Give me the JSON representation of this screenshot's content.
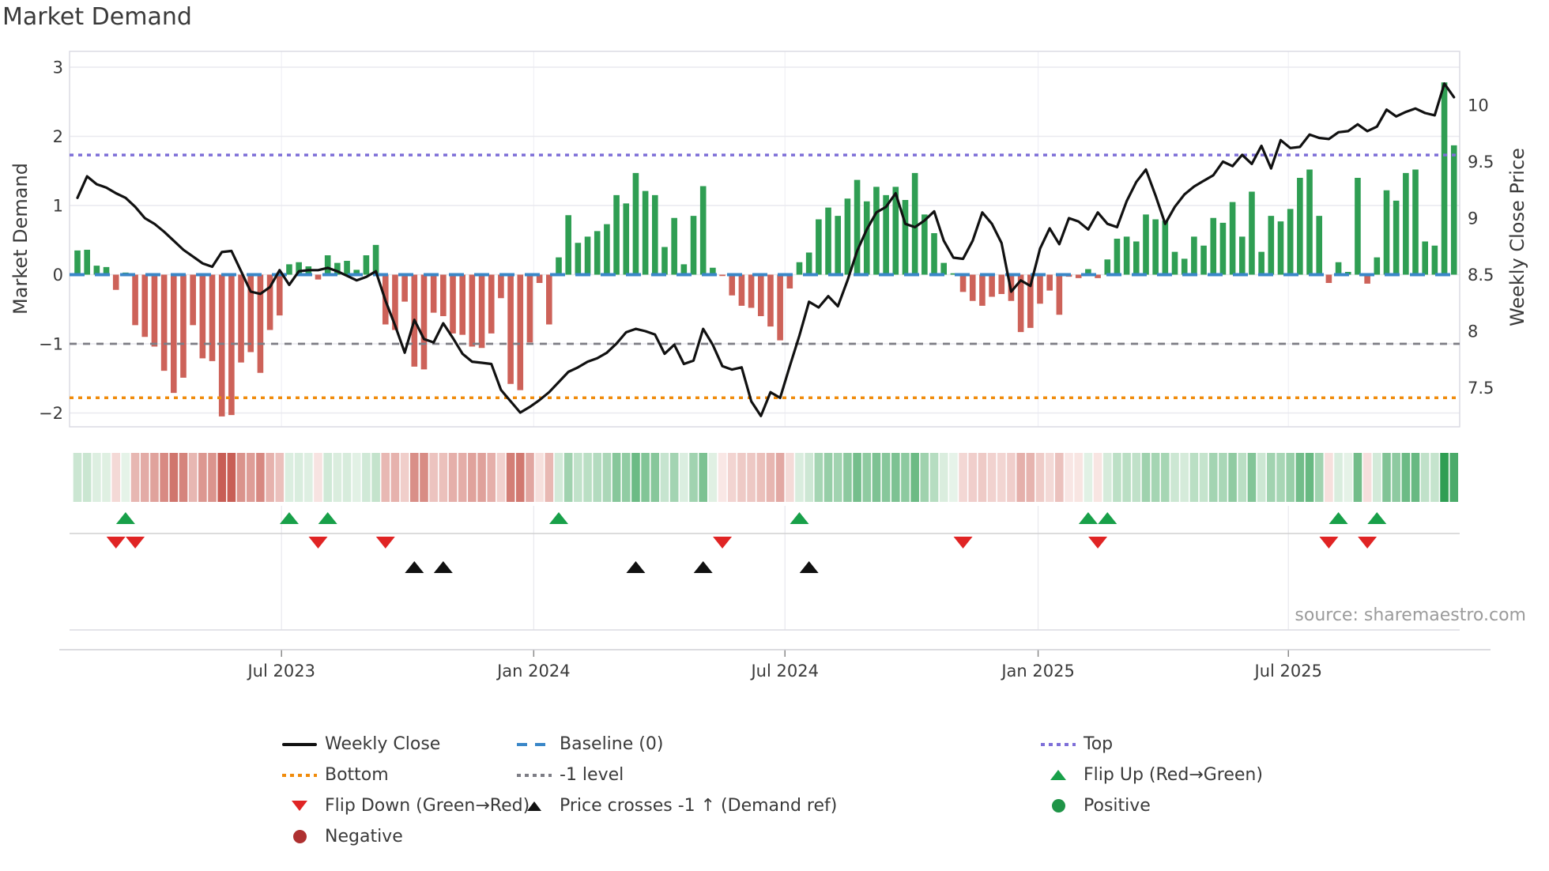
{
  "title": "Market Demand",
  "source_text": "source: sharemaestro.com",
  "axes": {
    "left_label": "Market Demand",
    "right_label": "Weekly Close Price",
    "left_ticks": [
      3,
      2,
      1,
      0,
      -1,
      -2
    ],
    "right_ticks": [
      10,
      9.5,
      9,
      8.5,
      8,
      7.5
    ],
    "x_ticks": [
      {
        "label": "Jul 2023",
        "week": 21.2
      },
      {
        "label": "Jan 2024",
        "week": 47.4
      },
      {
        "label": "Jul 2024",
        "week": 73.5
      },
      {
        "label": "Jan 2025",
        "week": 99.8
      },
      {
        "label": "Jul 2025",
        "week": 125.8
      }
    ]
  },
  "colors": {
    "bar_positive": "#2f9e53",
    "bar_negative": "#cd6259",
    "price_line": "#111111",
    "baseline": "#3a87c8",
    "top_line": "#7e6fd8",
    "bottom_line": "#f08b0b",
    "minus1_line": "#7d7d85",
    "flip_up": "#18a049",
    "flip_down": "#e02424",
    "price_cross": "#111111",
    "grid": "#e9e9ef",
    "spine": "#d9d9e2",
    "heat_green_lo": "#e8f4ea",
    "heat_green_hi": "#2f9e53",
    "heat_red_lo": "#f9e8e6",
    "heat_red_hi": "#c4544a"
  },
  "ref_lines": {
    "baseline": {
      "label": "Baseline (0)",
      "value": 0
    },
    "top": {
      "label": "Top",
      "value": 1.73
    },
    "bottom": {
      "label": "Bottom",
      "value": -1.78
    },
    "minus1": {
      "label": "-1 level",
      "value": -1
    }
  },
  "legend": {
    "columns": [
      {
        "items": [
          {
            "swatch": "line-black",
            "label": "Weekly Close"
          },
          {
            "swatch": "dotted-orange",
            "label": "Bottom"
          },
          {
            "swatch": "triangle-down-red",
            "label": "Flip Down (Green→Red)"
          },
          {
            "swatch": "circle-darkred",
            "label": "Negative"
          }
        ]
      },
      {
        "items": [
          {
            "swatch": "dashed-blue",
            "label": "Baseline (0)"
          },
          {
            "swatch": "dotted-gray",
            "label": "-1 level"
          },
          {
            "swatch": "triangle-up-black",
            "label": "Price crosses -1 ↑ (Demand ref)"
          }
        ]
      },
      {
        "items": [
          {
            "swatch": "dotted-purple",
            "label": "Top"
          },
          {
            "swatch": "triangle-up-green",
            "label": "Flip Up (Red→Green)"
          },
          {
            "swatch": "circle-green",
            "label": "Positive"
          }
        ]
      }
    ]
  },
  "chart_data": {
    "type": "bar+line",
    "x_unit": "week",
    "n_weeks": 144,
    "demand_axis_range": [
      -2.2,
      3.25
    ],
    "price_axis_range": [
      7.15,
      10.47
    ],
    "grid": true,
    "legend_position": "bottom",
    "series": [
      {
        "name": "Market Demand",
        "type": "bar",
        "axis": "left",
        "values": [
          0.35,
          0.36,
          0.13,
          0.11,
          -0.22,
          0.03,
          -0.73,
          -0.9,
          -1.04,
          -1.39,
          -1.71,
          -1.49,
          -0.73,
          -1.21,
          -1.25,
          -2.05,
          -2.03,
          -1.27,
          -1.12,
          -1.42,
          -0.8,
          -0.59,
          0.15,
          0.18,
          0.12,
          -0.07,
          0.28,
          0.17,
          0.2,
          0.07,
          0.28,
          0.43,
          -0.72,
          -0.8,
          -0.39,
          -1.33,
          -1.37,
          -0.55,
          -0.6,
          -0.85,
          -0.87,
          -1.04,
          -1.06,
          -0.85,
          -0.34,
          -1.58,
          -1.67,
          -0.98,
          -0.12,
          -0.72,
          0.25,
          0.86,
          0.46,
          0.55,
          0.63,
          0.73,
          1.15,
          1.03,
          1.47,
          1.21,
          1.15,
          0.4,
          0.82,
          0.15,
          0.85,
          1.28,
          0.1,
          -0.02,
          -0.3,
          -0.45,
          -0.48,
          -0.6,
          -0.75,
          -0.95,
          -0.2,
          0.18,
          0.32,
          0.8,
          0.97,
          0.85,
          1.1,
          1.37,
          1.06,
          1.27,
          1.15,
          1.27,
          1.08,
          1.47,
          0.87,
          0.6,
          0.17,
          0.02,
          -0.25,
          -0.38,
          -0.45,
          -0.32,
          -0.28,
          -0.38,
          -0.83,
          -0.77,
          -0.42,
          -0.23,
          -0.58,
          -0.03,
          -0.05,
          0.08,
          -0.05,
          0.22,
          0.52,
          0.55,
          0.48,
          0.87,
          0.8,
          0.78,
          0.33,
          0.23,
          0.55,
          0.42,
          0.82,
          0.75,
          1.05,
          0.55,
          1.2,
          0.33,
          0.85,
          0.77,
          0.95,
          1.4,
          1.52,
          0.85,
          -0.12,
          0.18,
          0.04,
          1.4,
          -0.13,
          0.25,
          1.22,
          1.07,
          1.47,
          1.52,
          0.48,
          0.42,
          2.78,
          1.87
        ]
      },
      {
        "name": "Weekly Close",
        "type": "line",
        "axis": "right",
        "values": [
          9.18,
          9.37,
          9.3,
          9.27,
          9.22,
          9.18,
          9.1,
          9.0,
          8.95,
          8.88,
          8.8,
          8.72,
          8.66,
          8.6,
          8.57,
          8.7,
          8.71,
          8.53,
          8.35,
          8.33,
          8.39,
          8.54,
          8.41,
          8.53,
          8.54,
          8.54,
          8.56,
          8.53,
          8.49,
          8.45,
          8.48,
          8.53,
          8.27,
          8.05,
          7.81,
          8.1,
          7.93,
          7.9,
          8.07,
          7.94,
          7.8,
          7.73,
          7.72,
          7.71,
          7.48,
          7.38,
          7.28,
          7.33,
          7.39,
          7.46,
          7.55,
          7.64,
          7.68,
          7.73,
          7.76,
          7.81,
          7.89,
          7.99,
          8.02,
          8.0,
          7.97,
          7.8,
          7.88,
          7.71,
          7.74,
          8.02,
          7.88,
          7.69,
          7.66,
          7.68,
          7.38,
          7.25,
          7.46,
          7.41,
          7.69,
          7.96,
          8.26,
          8.21,
          8.31,
          8.22,
          8.45,
          8.71,
          8.9,
          9.05,
          9.1,
          9.22,
          8.95,
          8.92,
          8.98,
          9.06,
          8.8,
          8.65,
          8.64,
          8.8,
          9.05,
          8.95,
          8.78,
          8.35,
          8.45,
          8.4,
          8.73,
          8.91,
          8.77,
          9.0,
          8.97,
          8.9,
          9.05,
          8.95,
          8.92,
          9.15,
          9.32,
          9.43,
          9.2,
          8.95,
          9.1,
          9.21,
          9.28,
          9.33,
          9.38,
          9.5,
          9.46,
          9.56,
          9.48,
          9.64,
          9.44,
          9.69,
          9.62,
          9.63,
          9.74,
          9.71,
          9.7,
          9.76,
          9.77,
          9.83,
          9.77,
          9.81,
          9.96,
          9.9,
          9.94,
          9.97,
          9.93,
          9.91,
          10.19,
          10.07
        ]
      }
    ],
    "heat_strip": "same sign/magnitude as Market Demand bars",
    "markers": {
      "flip_up_weeks": [
        5,
        22,
        26,
        50,
        75,
        105,
        107,
        131,
        135
      ],
      "flip_down_weeks": [
        4,
        6,
        25,
        32,
        67,
        92,
        106,
        130,
        134
      ],
      "price_cross_weeks": [
        35,
        38,
        58,
        65,
        76
      ]
    }
  }
}
